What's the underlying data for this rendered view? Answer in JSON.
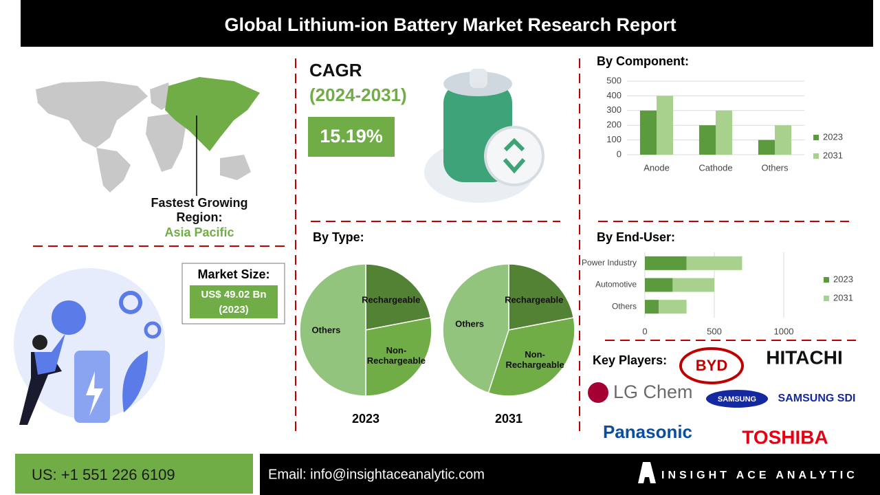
{
  "header": {
    "title": "Global Lithium-ion Battery Market Research Report"
  },
  "region": {
    "label": "Fastest Growing Region:",
    "value": "Asia Pacific"
  },
  "cagr": {
    "label": "CAGR",
    "period": "(2024-2031)",
    "value": "15.19%"
  },
  "market_size": {
    "label": "Market Size:",
    "value": "US$ 49.02 Bn",
    "year": "(2023)"
  },
  "type_section": {
    "title": "By Type:"
  },
  "chart_data": [
    {
      "type": "bar",
      "title": "By Component:",
      "orientation": "vertical",
      "stacked": false,
      "categories": [
        "Anode",
        "Cathode",
        "Others"
      ],
      "series": [
        {
          "name": "2023",
          "color": "#5b9a3d",
          "values": [
            300,
            200,
            100
          ]
        },
        {
          "name": "2031",
          "color": "#a9d18e",
          "values": [
            400,
            300,
            200
          ]
        }
      ],
      "ylim": [
        0,
        500
      ],
      "yticks": [
        0,
        100,
        200,
        300,
        400,
        500
      ],
      "grid": true,
      "legend": "right"
    },
    {
      "type": "pie",
      "title": "2023",
      "categories": [
        "Rechargeable",
        "Non-Rechargeable",
        "Others"
      ],
      "values": [
        22,
        28,
        50
      ],
      "colors": [
        "#548235",
        "#70ad47",
        "#93c47d"
      ]
    },
    {
      "type": "pie",
      "title": "2031",
      "categories": [
        "Rechargeable",
        "Non-Rechargeable",
        "Others"
      ],
      "values": [
        22,
        33,
        45
      ],
      "colors": [
        "#548235",
        "#70ad47",
        "#93c47d"
      ]
    },
    {
      "type": "bar",
      "title": "By End-User:",
      "orientation": "horizontal",
      "stacked": true,
      "categories": [
        "Power Industry",
        "Automotive",
        "Others"
      ],
      "series": [
        {
          "name": "2023",
          "color": "#5b9a3d",
          "values": [
            300,
            200,
            100
          ]
        },
        {
          "name": "2031",
          "color": "#a9d18e",
          "values": [
            400,
            300,
            200
          ]
        }
      ],
      "xlim": [
        0,
        1000
      ],
      "xticks": [
        0,
        500,
        1000
      ],
      "grid": true,
      "legend": "right"
    }
  ],
  "key_players": {
    "label": "Key Players:",
    "logos": [
      "BYD",
      "HITACHI",
      "LG Chem",
      "SAMSUNG",
      "SAMSUNG SDI",
      "Panasonic",
      "TOSHIBA"
    ]
  },
  "footer": {
    "phone": "US: +1 551 226 6109",
    "email": "Email: info@insightaceanalytic.com",
    "brand": "INSIGHT ACE ANALYTIC"
  }
}
